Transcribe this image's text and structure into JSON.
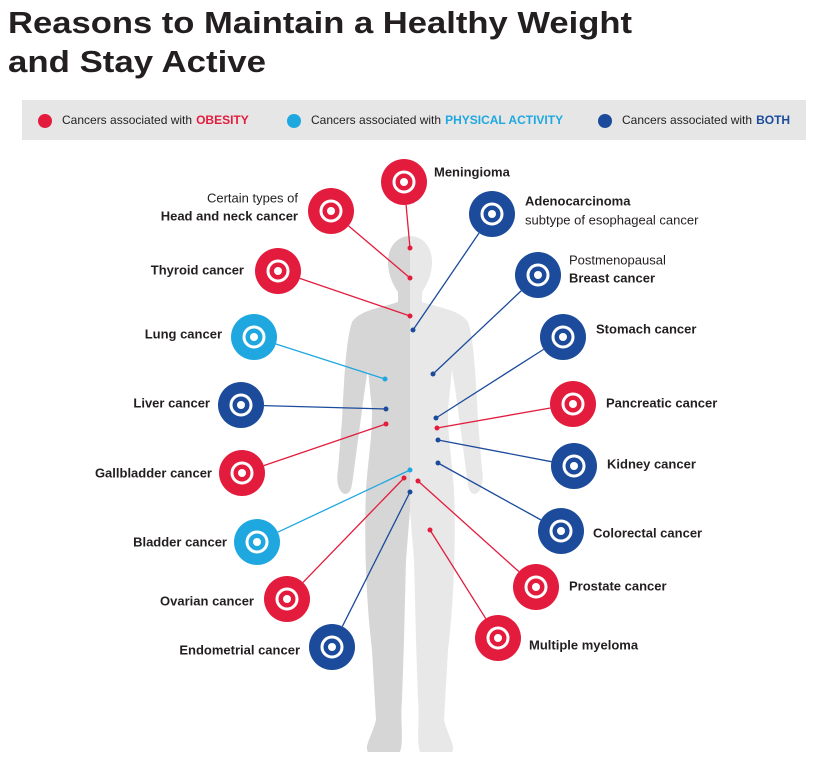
{
  "title": {
    "lines": [
      "Reasons to Maintain a Healthy Weight",
      "and Stay Active"
    ],
    "color": "#4cb847"
  },
  "legend": {
    "items": [
      {
        "prefix": "Cancers associated with",
        "emphasis": "OBESITY",
        "color": "#e31c3d"
      },
      {
        "prefix": "Cancers associated with",
        "emphasis": "PHYSICAL ACTIVITY",
        "color": "#1fa8e0"
      },
      {
        "prefix": "Cancers associated with",
        "emphasis": "BOTH",
        "color": "#1c4b9b"
      }
    ]
  },
  "nodes": [
    {
      "label": "Head and neck cancer",
      "note": "Certain types of",
      "note_position": "above",
      "color": "#e31c3d"
    },
    {
      "label": "Thyroid cancer",
      "color": "#e31c3d"
    },
    {
      "label": "Lung cancer",
      "color": "#1fa8e0"
    },
    {
      "label": "Liver cancer",
      "color": "#1c4b9b"
    },
    {
      "label": "Gallbladder cancer",
      "color": "#e31c3d"
    },
    {
      "label": "Bladder cancer",
      "color": "#1fa8e0"
    },
    {
      "label": "Ovarian cancer",
      "color": "#e31c3d"
    },
    {
      "label": "Endometrial cancer",
      "color": "#1c4b9b"
    },
    {
      "label": "Meningioma",
      "color": "#e31c3d"
    },
    {
      "label": "Adenocarcinoma",
      "note": "subtype of esophageal cancer",
      "note_position": "below",
      "color": "#1c4b9b"
    },
    {
      "label": "Breast cancer",
      "note": "Postmenopausal",
      "note_position": "above",
      "color": "#1c4b9b"
    },
    {
      "label": "Stomach cancer",
      "color": "#1c4b9b"
    },
    {
      "label": "Pancreatic cancer",
      "color": "#e31c3d"
    },
    {
      "label": "Kidney cancer",
      "color": "#1c4b9b"
    },
    {
      "label": "Colorectal cancer",
      "color": "#1c4b9b"
    },
    {
      "label": "Prostate cancer",
      "color": "#e31c3d"
    },
    {
      "label": "Multiple myeloma",
      "color": "#e31c3d"
    }
  ]
}
